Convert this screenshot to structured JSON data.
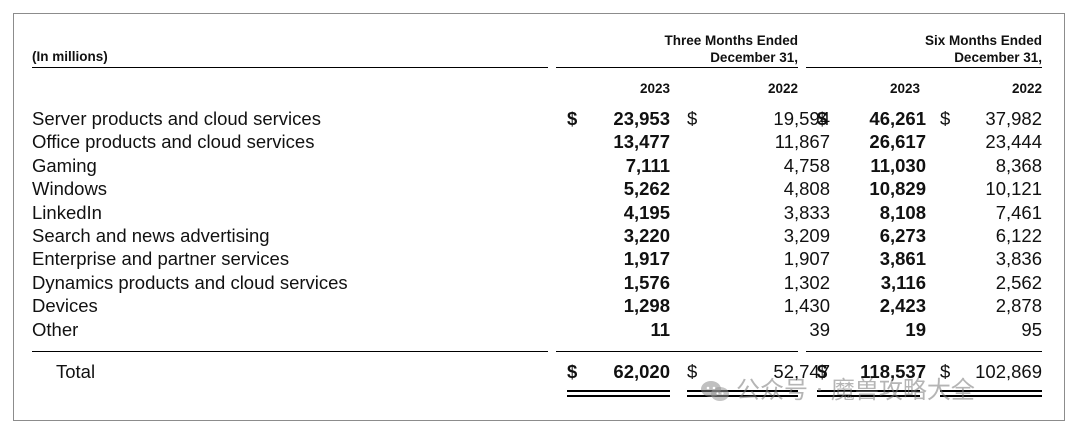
{
  "header": {
    "units_label": "(In millions)",
    "three_months_line1": "Three Months Ended",
    "three_months_line2": "December 31,",
    "six_months_line1": "Six Months Ended",
    "six_months_line2": "December 31,",
    "years": [
      "2023",
      "2022",
      "2023",
      "2022"
    ]
  },
  "currency_symbol": "$",
  "rows": [
    {
      "label": "Server products and cloud services",
      "values": [
        "23,953",
        "19,594",
        "46,261",
        "37,982"
      ]
    },
    {
      "label": "Office products and cloud services",
      "values": [
        "13,477",
        "11,867",
        "26,617",
        "23,444"
      ]
    },
    {
      "label": "Gaming",
      "values": [
        "7,111",
        "4,758",
        "11,030",
        "8,368"
      ]
    },
    {
      "label": "Windows",
      "values": [
        "5,262",
        "4,808",
        "10,829",
        "10,121"
      ]
    },
    {
      "label": "LinkedIn",
      "values": [
        "4,195",
        "3,833",
        "8,108",
        "7,461"
      ]
    },
    {
      "label": "Search and news advertising",
      "values": [
        "3,220",
        "3,209",
        "6,273",
        "6,122"
      ]
    },
    {
      "label": "Enterprise and partner services",
      "values": [
        "1,917",
        "1,907",
        "3,861",
        "3,836"
      ]
    },
    {
      "label": "Dynamics products and cloud services",
      "values": [
        "1,576",
        "1,302",
        "3,116",
        "2,562"
      ]
    },
    {
      "label": "Devices",
      "values": [
        "1,298",
        "1,430",
        "2,423",
        "2,878"
      ]
    },
    {
      "label": "Other",
      "values": [
        "11",
        "39",
        "19",
        "95"
      ]
    }
  ],
  "total": {
    "label": "Total",
    "values": [
      "62,020",
      "52,747",
      "118,537",
      "102,869"
    ]
  },
  "watermark": {
    "text": "公众号 · 魔兽攻略大全",
    "icon": "wechat-icon"
  }
}
